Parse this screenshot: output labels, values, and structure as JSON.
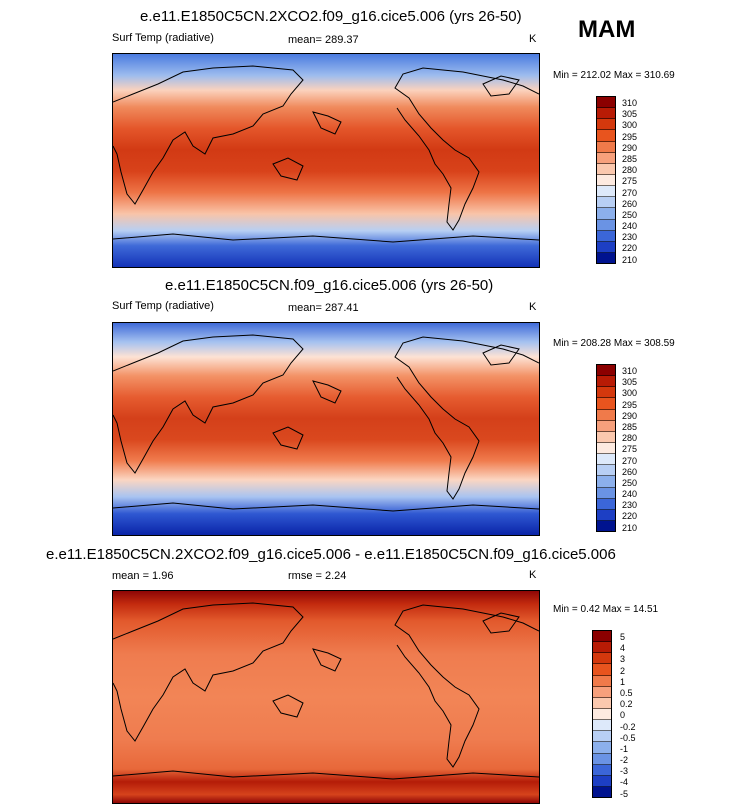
{
  "season": "MAM",
  "panels": [
    {
      "title": "e.e11.E1850C5CN.2XCO2.f09_g16.cice5.006 (yrs 26-50)",
      "left_label": "Surf Temp (radiative)",
      "center_label": "mean=  289.37",
      "right_label": "K",
      "minmax": "Min = 212.02 Max = 310.69",
      "mean": 289.37,
      "min": 212.02,
      "max": 310.69,
      "levels": [
        "310",
        "305",
        "300",
        "295",
        "290",
        "285",
        "280",
        "275",
        "270",
        "260",
        "250",
        "240",
        "230",
        "220",
        "210"
      ],
      "colors": [
        "#8b0000",
        "#b81b05",
        "#d4380d",
        "#e8541e",
        "#f07a4a",
        "#f7a07c",
        "#fbc8ae",
        "#fdeae0",
        "#dde9fa",
        "#b8cff4",
        "#8cb0ec",
        "#6a93e4",
        "#3b66d8",
        "#1d3fc4",
        "#00138f"
      ]
    },
    {
      "title": "e.e11.E1850C5CN.f09_g16.cice5.006 (yrs 26-50)",
      "left_label": "Surf Temp (radiative)",
      "center_label": "mean=  287.41",
      "right_label": "K",
      "minmax": "Min = 208.28 Max = 308.59",
      "mean": 287.41,
      "min": 208.28,
      "max": 308.59,
      "levels": [
        "310",
        "305",
        "300",
        "295",
        "290",
        "285",
        "280",
        "275",
        "270",
        "260",
        "250",
        "240",
        "230",
        "220",
        "210"
      ],
      "colors": [
        "#8b0000",
        "#b81b05",
        "#d4380d",
        "#e8541e",
        "#f07a4a",
        "#f7a07c",
        "#fbc8ae",
        "#fdeae0",
        "#dde9fa",
        "#b8cff4",
        "#8cb0ec",
        "#6a93e4",
        "#3b66d8",
        "#1d3fc4",
        "#00138f"
      ]
    },
    {
      "title": "e.e11.E1850C5CN.2XCO2.f09_g16.cice5.006 - e.e11.E1850C5CN.f09_g16.cice5.006",
      "left_label": "mean =    1.96",
      "center_label": "rmse =    2.24",
      "right_label": "K",
      "minmax": "Min =  0.42 Max =  14.51",
      "mean": 1.96,
      "rmse": 2.24,
      "min": 0.42,
      "max": 14.51,
      "levels": [
        "5",
        "4",
        "3",
        "2",
        "1",
        "0.5",
        "0.2",
        "0",
        "-0.2",
        "-0.5",
        "-1",
        "-2",
        "-3",
        "-4",
        "-5"
      ],
      "colors": [
        "#8b0000",
        "#b81b05",
        "#d4380d",
        "#e8541e",
        "#f07a4a",
        "#f7a07c",
        "#fbc8ae",
        "#fdeae0",
        "#dde9fa",
        "#b8cff4",
        "#8cb0ec",
        "#6a93e4",
        "#3b66d8",
        "#1d3fc4",
        "#00138f"
      ]
    }
  ],
  "chart_data": [
    {
      "type": "heatmap",
      "title": "e.e11.E1850C5CN.2XCO2.f09_g16.cice5.006 (yrs 26-50)",
      "variable": "Surf Temp (radiative)",
      "units": "K",
      "mean": 289.37,
      "min": 212.02,
      "max": 310.69,
      "colorbar_levels": [
        310,
        305,
        300,
        295,
        290,
        285,
        280,
        275,
        270,
        260,
        250,
        240,
        230,
        220,
        210
      ]
    },
    {
      "type": "heatmap",
      "title": "e.e11.E1850C5CN.f09_g16.cice5.006 (yrs 26-50)",
      "variable": "Surf Temp (radiative)",
      "units": "K",
      "mean": 287.41,
      "min": 208.28,
      "max": 308.59,
      "colorbar_levels": [
        310,
        305,
        300,
        295,
        290,
        285,
        280,
        275,
        270,
        260,
        250,
        240,
        230,
        220,
        210
      ]
    },
    {
      "type": "heatmap",
      "title": "e.e11.E1850C5CN.2XCO2.f09_g16.cice5.006 - e.e11.E1850C5CN.f09_g16.cice5.006",
      "units": "K",
      "mean": 1.96,
      "rmse": 2.24,
      "min": 0.42,
      "max": 14.51,
      "colorbar_levels": [
        5,
        4,
        3,
        2,
        1,
        0.5,
        0.2,
        0,
        -0.2,
        -0.5,
        -1,
        -2,
        -3,
        -4,
        -5
      ]
    }
  ]
}
